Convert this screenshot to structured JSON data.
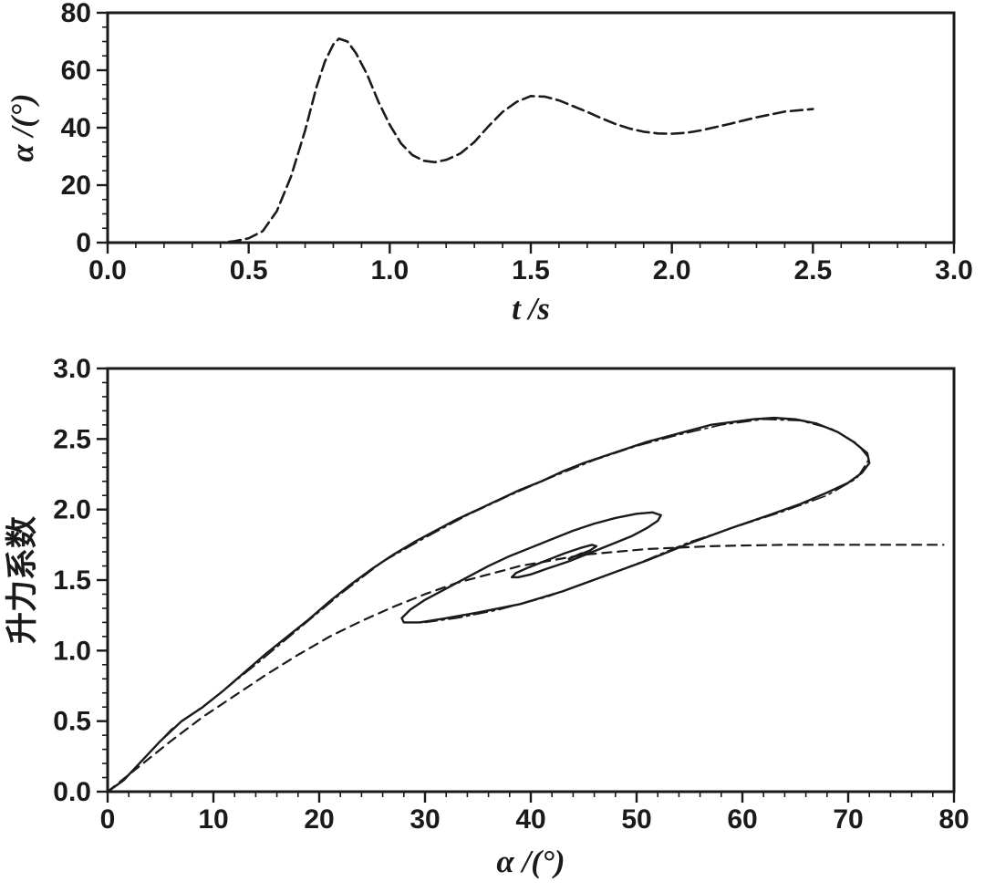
{
  "page": {
    "background": "#ffffff",
    "ink_color": "#1a1a1a"
  },
  "chart_data": [
    {
      "type": "line",
      "id": "alpha-vs-time",
      "title": "",
      "xlabel": "t /s",
      "ylabel": "α /(°)",
      "xlabel_italic": true,
      "ylabel_italic": true,
      "xlim": [
        0,
        3
      ],
      "ylim": [
        0,
        80
      ],
      "xticks": [
        0,
        0.5,
        1,
        1.5,
        2,
        2.5,
        3
      ],
      "xtick_labels": [
        "0.0",
        "0.5",
        "1.0",
        "1.5",
        "2.0",
        "2.5",
        "3.0"
      ],
      "yticks": [
        0,
        20,
        40,
        60,
        80
      ],
      "ytick_labels": [
        "0",
        "20",
        "40",
        "60",
        "80"
      ],
      "x_minor_step": 0.1,
      "y_minor_step": 5,
      "grid": false,
      "legend": "none",
      "series": [
        {
          "name": "angle-of-attack-history",
          "line_style": "fine-dashed",
          "width": 2.6,
          "color": "#1a1a1a",
          "points": [
            [
              0,
              0
            ],
            [
              0.1,
              0
            ],
            [
              0.2,
              0
            ],
            [
              0.3,
              0
            ],
            [
              0.4,
              0
            ],
            [
              0.45,
              0.5
            ],
            [
              0.5,
              1.5
            ],
            [
              0.55,
              4
            ],
            [
              0.6,
              11
            ],
            [
              0.65,
              23
            ],
            [
              0.7,
              39
            ],
            [
              0.74,
              54
            ],
            [
              0.77,
              63
            ],
            [
              0.8,
              69
            ],
            [
              0.82,
              71
            ],
            [
              0.85,
              70
            ],
            [
              0.88,
              66
            ],
            [
              0.92,
              58.5
            ],
            [
              0.96,
              49
            ],
            [
              1.0,
              41
            ],
            [
              1.04,
              34.5
            ],
            [
              1.08,
              30.5
            ],
            [
              1.12,
              28.5
            ],
            [
              1.16,
              28
            ],
            [
              1.2,
              28.8
            ],
            [
              1.25,
              31
            ],
            [
              1.3,
              35
            ],
            [
              1.35,
              40.5
            ],
            [
              1.4,
              45.5
            ],
            [
              1.45,
              49
            ],
            [
              1.5,
              51
            ],
            [
              1.55,
              50.8
            ],
            [
              1.6,
              49.5
            ],
            [
              1.65,
              47.5
            ],
            [
              1.7,
              45.5
            ],
            [
              1.75,
              43.3
            ],
            [
              1.8,
              41.3
            ],
            [
              1.85,
              39.7
            ],
            [
              1.9,
              38.6
            ],
            [
              1.95,
              38
            ],
            [
              2.0,
              37.9
            ],
            [
              2.05,
              38.2
            ],
            [
              2.1,
              39
            ],
            [
              2.2,
              41.2
            ],
            [
              2.3,
              43.6
            ],
            [
              2.4,
              45.6
            ],
            [
              2.5,
              46.5
            ]
          ]
        }
      ]
    },
    {
      "type": "line",
      "id": "lift-coefficient-vs-alpha",
      "title": "",
      "xlabel": "α /(°)",
      "ylabel": "升力系数",
      "xlabel_italic": true,
      "ylabel_italic": false,
      "xlim": [
        0,
        80
      ],
      "ylim": [
        0,
        3
      ],
      "xticks": [
        0,
        10,
        20,
        30,
        40,
        50,
        60,
        70,
        80
      ],
      "xtick_labels": [
        "0",
        "10",
        "20",
        "30",
        "40",
        "50",
        "60",
        "70",
        "80"
      ],
      "yticks": [
        0,
        0.5,
        1,
        1.5,
        2,
        2.5,
        3
      ],
      "ytick_labels": [
        "0.0",
        "0.5",
        "1.0",
        "1.5",
        "2.0",
        "2.5",
        "3.0"
      ],
      "x_minor_step": 2,
      "y_minor_step": 0.1,
      "grid": false,
      "legend": "none",
      "series": [
        {
          "name": "dynamic-lift-hysteresis-spiral",
          "line_style": "solid",
          "width": 2.4,
          "color": "#1a1a1a",
          "points": [
            [
              0,
              0
            ],
            [
              1.5,
              0.08
            ],
            [
              3,
              0.2
            ],
            [
              5,
              0.36
            ],
            [
              7,
              0.5
            ],
            [
              9,
              0.6
            ],
            [
              11,
              0.72
            ],
            [
              13,
              0.85
            ],
            [
              15,
              0.98
            ],
            [
              17,
              1.1
            ],
            [
              19,
              1.22
            ],
            [
              21,
              1.35
            ],
            [
              23,
              1.47
            ],
            [
              25,
              1.58
            ],
            [
              27,
              1.68
            ],
            [
              29,
              1.77
            ],
            [
              31,
              1.85
            ],
            [
              33,
              1.93
            ],
            [
              35,
              2.0
            ],
            [
              37,
              2.07
            ],
            [
              39,
              2.14
            ],
            [
              41,
              2.2
            ],
            [
              43,
              2.27
            ],
            [
              45,
              2.33
            ],
            [
              47,
              2.38
            ],
            [
              49,
              2.43
            ],
            [
              51,
              2.48
            ],
            [
              53,
              2.52
            ],
            [
              55,
              2.56
            ],
            [
              57,
              2.6
            ],
            [
              59,
              2.62
            ],
            [
              61,
              2.64
            ],
            [
              63,
              2.65
            ],
            [
              65,
              2.64
            ],
            [
              67,
              2.61
            ],
            [
              69,
              2.55
            ],
            [
              70.5,
              2.48
            ],
            [
              71.8,
              2.4
            ],
            [
              72,
              2.33
            ],
            [
              71.3,
              2.26
            ],
            [
              70,
              2.19
            ],
            [
              68,
              2.12
            ],
            [
              65.5,
              2.04
            ],
            [
              62.5,
              1.96
            ],
            [
              59,
              1.87
            ],
            [
              55,
              1.76
            ],
            [
              51,
              1.64
            ],
            [
              47,
              1.53
            ],
            [
              43,
              1.42
            ],
            [
              39,
              1.33
            ],
            [
              35,
              1.27
            ],
            [
              32,
              1.23
            ],
            [
              29.5,
              1.2
            ],
            [
              28,
              1.2
            ],
            [
              27.8,
              1.23
            ],
            [
              28.6,
              1.29
            ],
            [
              30,
              1.36
            ],
            [
              32,
              1.44
            ],
            [
              34,
              1.52
            ],
            [
              36,
              1.6
            ],
            [
              38,
              1.67
            ],
            [
              40,
              1.73
            ],
            [
              42,
              1.79
            ],
            [
              44,
              1.85
            ],
            [
              46,
              1.9
            ],
            [
              48,
              1.94
            ],
            [
              50,
              1.97
            ],
            [
              51.5,
              1.98
            ],
            [
              52.3,
              1.96
            ],
            [
              52,
              1.92
            ],
            [
              51,
              1.87
            ],
            [
              49.5,
              1.81
            ],
            [
              47.5,
              1.75
            ],
            [
              45.5,
              1.69
            ],
            [
              43.5,
              1.63
            ],
            [
              41.5,
              1.58
            ],
            [
              40,
              1.54
            ],
            [
              38.8,
              1.52
            ],
            [
              38.2,
              1.52
            ],
            [
              38.6,
              1.55
            ],
            [
              39.8,
              1.59
            ],
            [
              41.5,
              1.64
            ],
            [
              43.2,
              1.69
            ],
            [
              44.8,
              1.73
            ],
            [
              45.8,
              1.75
            ],
            [
              46.2,
              1.74
            ],
            [
              45.6,
              1.71
            ],
            [
              44.6,
              1.68
            ],
            [
              43.8,
              1.66
            ],
            [
              43.6,
              1.65
            ],
            [
              44.2,
              1.67
            ],
            [
              44.8,
              1.69
            ]
          ]
        },
        {
          "name": "dynamic-lift-second-cycle",
          "line_style": "dashdot",
          "width": 1.6,
          "color": "#1a1a1a",
          "points": [
            [
              2,
              0.12
            ],
            [
              6,
              0.44
            ],
            [
              10,
              0.66
            ],
            [
              14,
              0.9
            ],
            [
              18,
              1.15
            ],
            [
              22,
              1.4
            ],
            [
              26,
              1.63
            ],
            [
              30,
              1.8
            ],
            [
              34,
              1.96
            ],
            [
              38,
              2.1
            ],
            [
              42,
              2.23
            ],
            [
              46,
              2.35
            ],
            [
              50,
              2.45
            ],
            [
              54,
              2.53
            ],
            [
              58,
              2.6
            ],
            [
              62,
              2.64
            ],
            [
              65.5,
              2.63
            ],
            [
              68.5,
              2.57
            ],
            [
              70.8,
              2.47
            ],
            [
              72,
              2.36
            ],
            [
              70.8,
              2.22
            ],
            [
              68,
              2.1
            ],
            [
              64,
              1.99
            ],
            [
              59.5,
              1.88
            ],
            [
              55,
              1.77
            ],
            [
              50.5,
              1.63
            ],
            [
              46,
              1.5
            ],
            [
              41.5,
              1.38
            ],
            [
              37,
              1.29
            ],
            [
              33,
              1.23
            ],
            [
              30,
              1.2
            ]
          ]
        },
        {
          "name": "static-lift-curve",
          "line_style": "dashed",
          "width": 2.2,
          "color": "#1a1a1a",
          "points": [
            [
              0,
              0
            ],
            [
              3,
              0.18
            ],
            [
              6,
              0.36
            ],
            [
              9,
              0.53
            ],
            [
              12,
              0.68
            ],
            [
              15,
              0.83
            ],
            [
              18,
              0.97
            ],
            [
              21,
              1.1
            ],
            [
              24,
              1.21
            ],
            [
              27,
              1.31
            ],
            [
              30,
              1.4
            ],
            [
              33,
              1.48
            ],
            [
              36,
              1.54
            ],
            [
              39,
              1.6
            ],
            [
              42,
              1.64
            ],
            [
              45,
              1.68
            ],
            [
              48,
              1.7
            ],
            [
              51,
              1.72
            ],
            [
              54,
              1.73
            ],
            [
              57,
              1.74
            ],
            [
              60,
              1.745
            ],
            [
              64,
              1.75
            ],
            [
              68,
              1.75
            ],
            [
              72,
              1.75
            ],
            [
              76,
              1.75
            ],
            [
              79,
              1.75
            ]
          ]
        }
      ]
    }
  ]
}
